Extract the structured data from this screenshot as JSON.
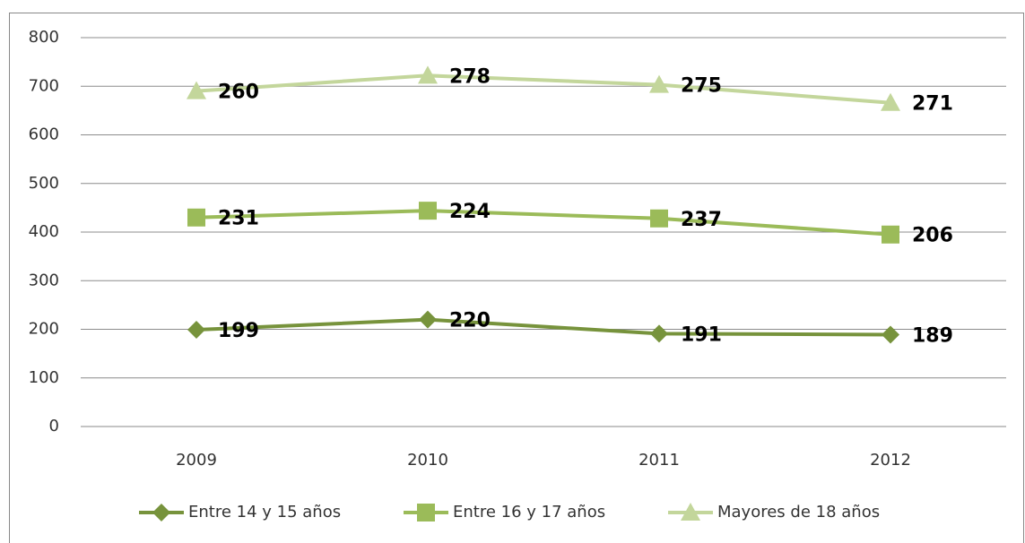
{
  "chart_data": {
    "type": "line",
    "stacked": true,
    "categories": [
      "2009",
      "2010",
      "2011",
      "2012"
    ],
    "series": [
      {
        "name": "Entre 14 y 15 años",
        "color": "#77933c",
        "marker": "diamond",
        "values": [
          199,
          220,
          191,
          189
        ]
      },
      {
        "name": "Entre 16 y 17 años",
        "color": "#9bbb59",
        "marker": "square",
        "values": [
          231,
          224,
          237,
          206
        ]
      },
      {
        "name": "Mayores de 18 años",
        "color": "#c3d69b",
        "marker": "triangle",
        "values": [
          260,
          278,
          275,
          271
        ]
      }
    ],
    "ylim": [
      0,
      800
    ],
    "yticks": [
      0,
      100,
      200,
      300,
      400,
      500,
      600,
      700,
      800
    ],
    "grid": true,
    "legend": "bottom"
  }
}
